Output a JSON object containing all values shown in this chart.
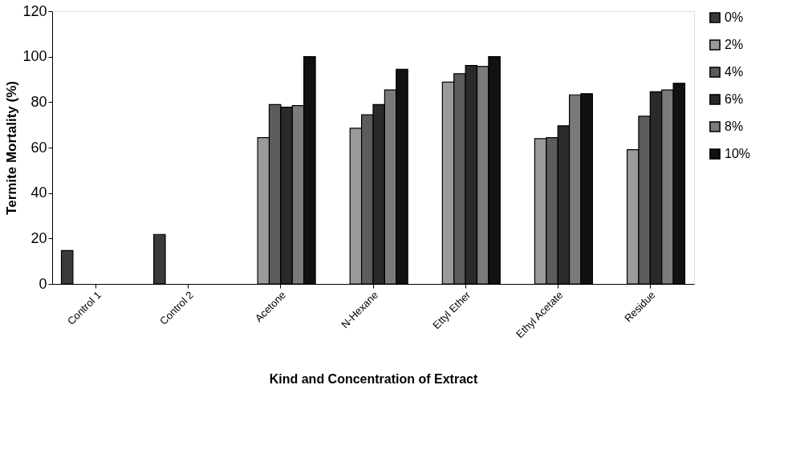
{
  "chart_data": {
    "type": "bar",
    "xlabel": "Kind and Concentration of Extract",
    "ylabel": "Termite Mortality (%)",
    "categories": [
      "Control 1",
      "Control 2",
      "Acetone",
      "N-Hexane",
      "Ettyl Ether",
      "Ethyl Acetate",
      "Residue"
    ],
    "series": [
      {
        "name": "0%",
        "color": "#3a3a3a",
        "values": [
          14.7,
          21.8,
          null,
          null,
          null,
          null,
          null
        ]
      },
      {
        "name": "2%",
        "color": "#9a9a9a",
        "values": [
          null,
          null,
          64.4,
          68.5,
          88.8,
          63.9,
          59.1
        ]
      },
      {
        "name": "4%",
        "color": "#5c5c5c",
        "values": [
          null,
          null,
          78.9,
          74.4,
          92.5,
          64.4,
          73.8
        ]
      },
      {
        "name": "6%",
        "color": "#2a2a2a",
        "values": [
          null,
          null,
          77.8,
          78.9,
          96.1,
          69.6,
          84.6
        ]
      },
      {
        "name": "8%",
        "color": "#7a7a7a",
        "values": [
          null,
          null,
          78.5,
          85.4,
          95.7,
          83.2,
          85.4
        ]
      },
      {
        "name": "10%",
        "color": "#111111",
        "values": [
          null,
          null,
          100,
          94.5,
          100,
          83.7,
          88.3
        ]
      }
    ],
    "ylim": [
      0,
      120
    ],
    "yticks": [
      0,
      20,
      40,
      60,
      80,
      100,
      120
    ],
    "grid": false,
    "legend": "right"
  }
}
